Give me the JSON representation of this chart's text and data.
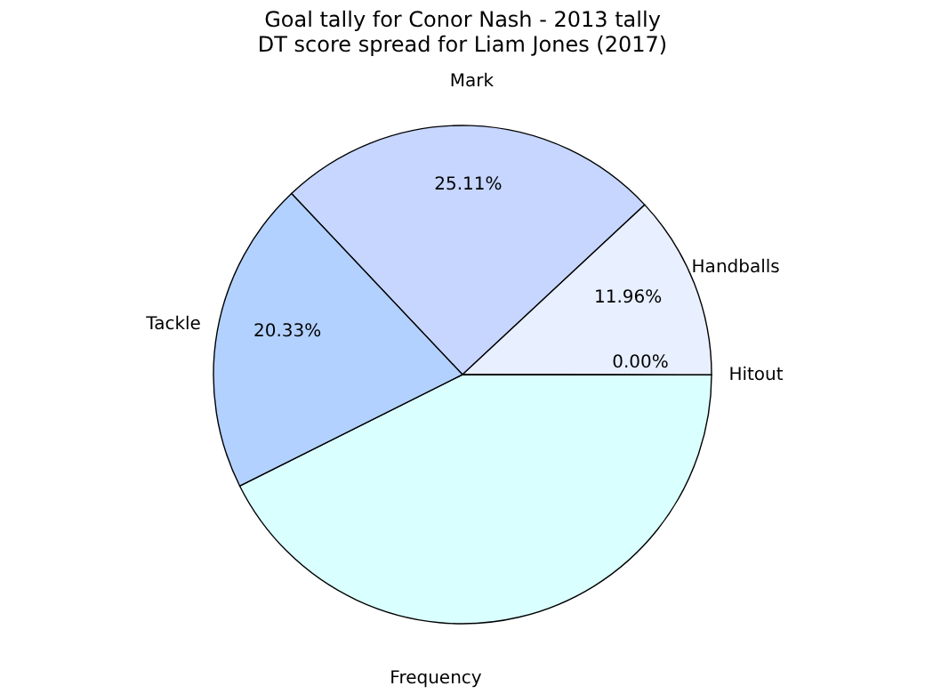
{
  "chart_data": {
    "type": "pie",
    "title": [
      "Goal tally for Conor Nash - 2013 tally",
      "DT score spread for Liam Jones (2017)"
    ],
    "categories": [
      "Mark",
      "Handballs",
      "Hitout",
      null,
      "Tackle"
    ],
    "values": [
      25.11,
      11.96,
      0.0,
      42.6,
      20.33
    ],
    "value_labels": [
      "25.11%",
      "11.96%",
      "0.00%",
      null,
      "20.33%"
    ],
    "colors": [
      "#c6d6ff",
      "#e8efff",
      "#dde4f5",
      "#d9ffff",
      "#b3d1ff"
    ],
    "annotations": [
      "Frequency"
    ],
    "legend": false
  }
}
